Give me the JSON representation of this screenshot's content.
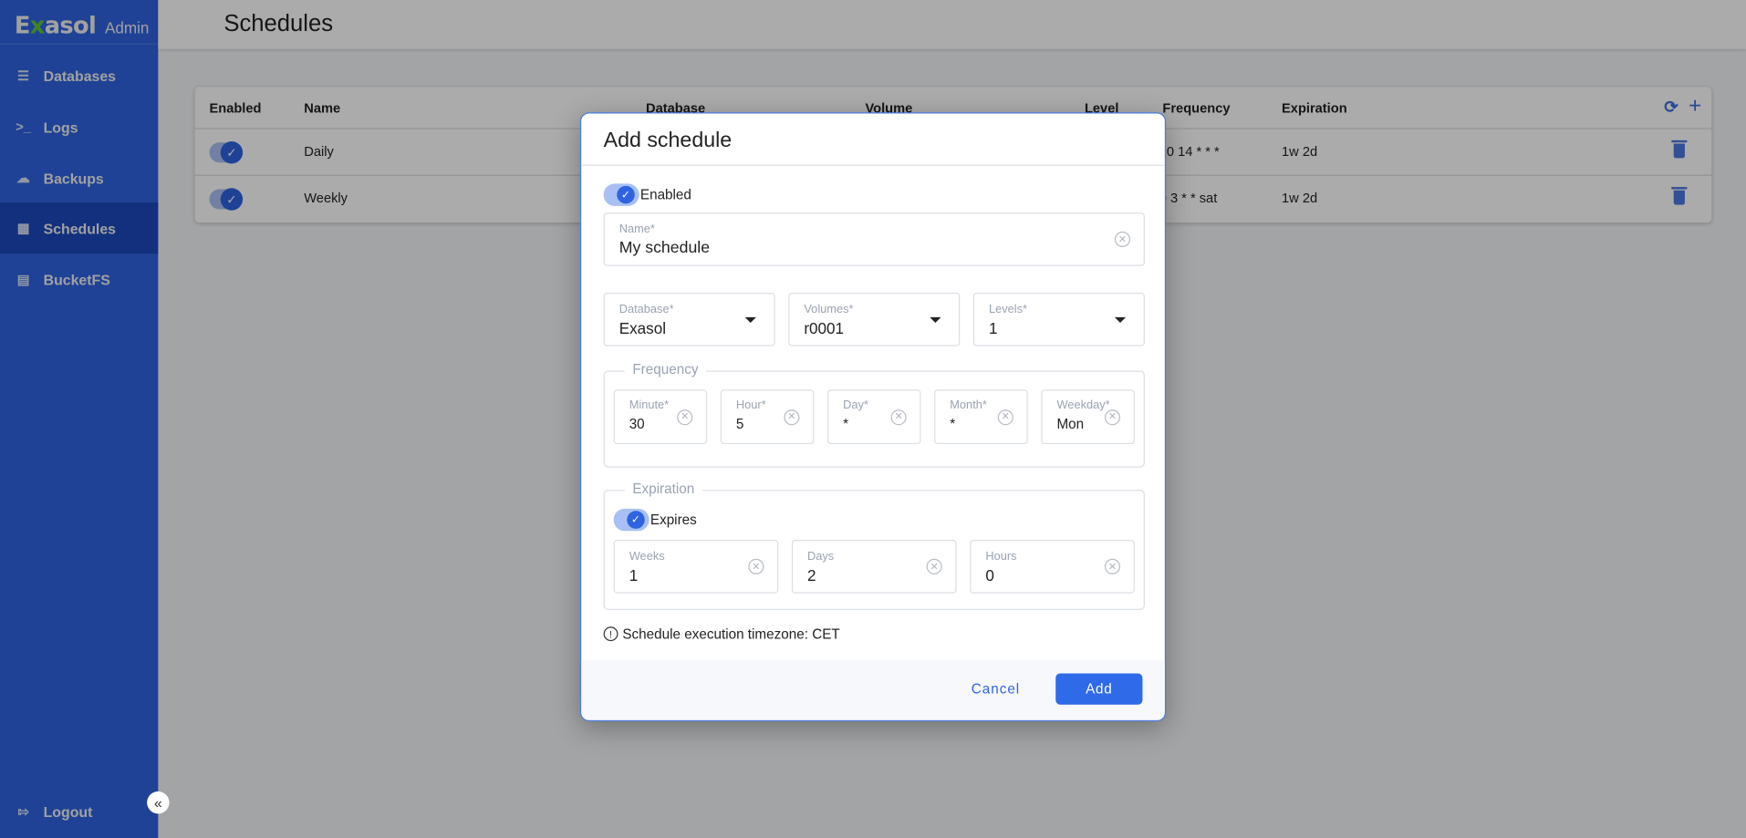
{
  "brand": {
    "name_pre": "E",
    "name_x": "x",
    "name_post": "asol",
    "suffix": "Admin",
    "accent": "#2f63e0",
    "logo_x_color": "#5fc53b"
  },
  "sidebar": {
    "items": [
      {
        "label": "Databases",
        "icon": "database-icon"
      },
      {
        "label": "Logs",
        "icon": "terminal-icon"
      },
      {
        "label": "Backups",
        "icon": "cloud-upload-icon"
      },
      {
        "label": "Schedules",
        "icon": "calendar-icon",
        "active": true
      },
      {
        "label": "BucketFS",
        "icon": "server-icon"
      }
    ],
    "logout": "Logout",
    "collapse_icon": "«"
  },
  "header": {
    "title": "Schedules"
  },
  "table": {
    "columns": [
      "Enabled",
      "Name",
      "Database",
      "Volume",
      "Level",
      "Frequency",
      "Expiration"
    ],
    "rows": [
      {
        "enabled": true,
        "name": "Daily",
        "frequency": "10 14 * * *",
        "expiration": "1w 2d"
      },
      {
        "enabled": true,
        "name": "Weekly",
        "frequency": "0 3 * * sat",
        "expiration": "1w 2d"
      }
    ]
  },
  "modal": {
    "title": "Add schedule",
    "enabled_label": "Enabled",
    "enabled": true,
    "name": {
      "label": "Name*",
      "value": "My schedule"
    },
    "database": {
      "label": "Database*",
      "value": "Exasol"
    },
    "volumes": {
      "label": "Volumes*",
      "value": "r0001"
    },
    "levels": {
      "label": "Levels*",
      "value": "1"
    },
    "frequency": {
      "legend": "Frequency",
      "fields": [
        {
          "label": "Minute*",
          "value": "30"
        },
        {
          "label": "Hour*",
          "value": "5"
        },
        {
          "label": "Day*",
          "value": "*"
        },
        {
          "label": "Month*",
          "value": "*"
        },
        {
          "label": "Weekday*",
          "value": "Mon"
        }
      ]
    },
    "expiration": {
      "legend": "Expiration",
      "expires_label": "Expires",
      "expires": true,
      "fields": [
        {
          "label": "Weeks",
          "value": "1"
        },
        {
          "label": "Days",
          "value": "2"
        },
        {
          "label": "Hours",
          "value": "0"
        }
      ]
    },
    "timezone_note": "Schedule execution timezone: CET",
    "cancel": "Cancel",
    "add": "Add"
  }
}
